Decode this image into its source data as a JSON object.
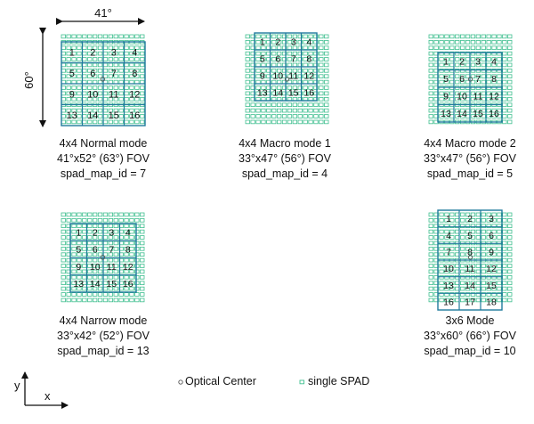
{
  "colors": {
    "spad": "#3fbf8f",
    "zone": "#1f7a9c",
    "text": "#111111"
  },
  "dimensions": {
    "width_label": "41°",
    "height_label": "60°"
  },
  "modes": [
    {
      "caption": [
        "4x4 Normal mode",
        "41°x52° (63°) FOV",
        "spad_map_id = 7"
      ],
      "zone_cols": 4,
      "zone_rows": 4,
      "zone_labels": [
        "1",
        "2",
        "3",
        "4",
        "5",
        "6",
        "7",
        "8",
        "9",
        "10",
        "11",
        "12",
        "13",
        "14",
        "15",
        "16"
      ]
    },
    {
      "caption": [
        "4x4 Macro mode 1",
        "33°x47° (56°) FOV",
        "spad_map_id = 4"
      ],
      "zone_cols": 4,
      "zone_rows": 4,
      "zone_labels": [
        "1",
        "2",
        "3",
        "4",
        "5",
        "6",
        "7",
        "8",
        "9",
        "10",
        "11",
        "12",
        "13",
        "14",
        "15",
        "16"
      ]
    },
    {
      "caption": [
        "4x4 Macro mode 2",
        "33°x47° (56°) FOV",
        "spad_map_id = 5"
      ],
      "zone_cols": 4,
      "zone_rows": 4,
      "zone_labels": [
        "1",
        "2",
        "3",
        "4",
        "5",
        "6",
        "7",
        "8",
        "9",
        "10",
        "11",
        "12",
        "13",
        "14",
        "15",
        "16"
      ]
    },
    {
      "caption": [
        "4x4 Narrow mode",
        "33°x42° (52°) FOV",
        "spad_map_id = 13"
      ],
      "zone_cols": 4,
      "zone_rows": 4,
      "zone_labels": [
        "1",
        "2",
        "3",
        "4",
        "5",
        "6",
        "7",
        "8",
        "9",
        "10",
        "11",
        "12",
        "13",
        "14",
        "15",
        "16"
      ]
    },
    {
      "caption": [
        "3x6 Mode",
        "33°x60° (66°) FOV",
        "spad_map_id = 10"
      ],
      "zone_cols": 3,
      "zone_rows": 6,
      "zone_labels": [
        "1",
        "2",
        "3",
        "4",
        "5",
        "6",
        "7",
        "8",
        "9",
        "10",
        "11",
        "12",
        "13",
        "14",
        "15",
        "16",
        "17",
        "18"
      ]
    }
  ],
  "legend": {
    "optical_center": "Optical Center",
    "single_spad": "single SPAD"
  },
  "axes": {
    "x": "x",
    "y": "y"
  }
}
